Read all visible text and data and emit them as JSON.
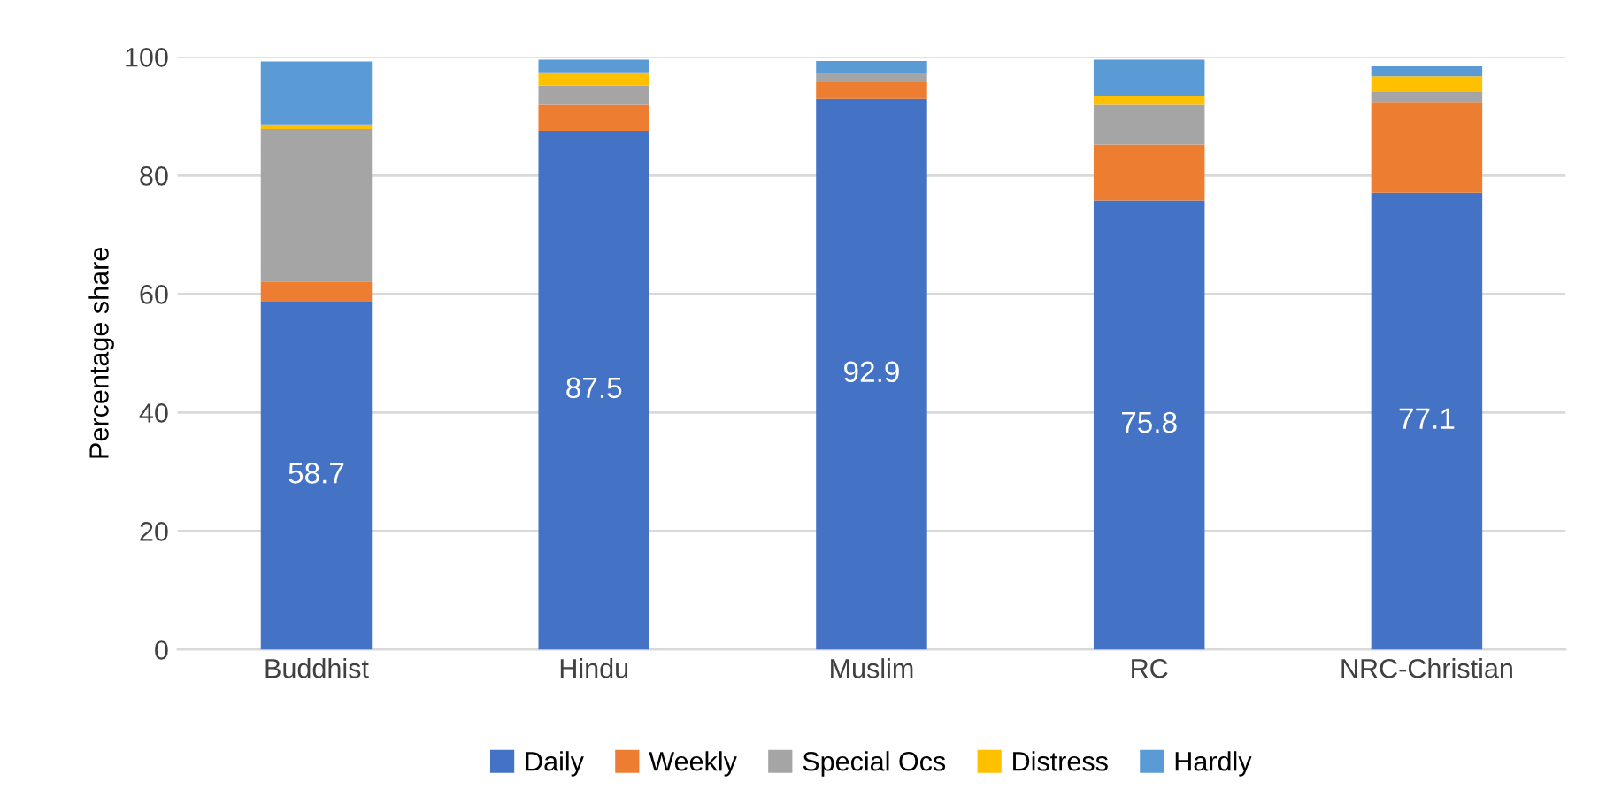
{
  "chart_data": {
    "type": "bar",
    "stacked": true,
    "ylabel": "Percentage share",
    "categories": [
      "Buddhist",
      "Hindu",
      "Muslim",
      "RC",
      "NRC-Christian"
    ],
    "series": [
      {
        "name": "Daily",
        "color": "#4472c4",
        "values": [
          58.7,
          87.5,
          92.9,
          75.8,
          77.1
        ],
        "value_labels": [
          "58.7",
          "87.5",
          "92.9",
          "75.8",
          "77.1"
        ]
      },
      {
        "name": "Weekly",
        "color": "#ed7d31",
        "values": [
          3.4,
          4.4,
          2.8,
          9.4,
          15.3
        ]
      },
      {
        "name": "Special Ocs",
        "color": "#a5a5a5",
        "values": [
          25.7,
          3.3,
          1.6,
          6.7,
          1.8
        ]
      },
      {
        "name": "Distress",
        "color": "#ffc000",
        "values": [
          0.8,
          2.2,
          0,
          1.5,
          2.5
        ]
      },
      {
        "name": "Hardly",
        "color": "#5b9bd5",
        "values": [
          10.6,
          2.1,
          2.0,
          6.1,
          1.7
        ]
      }
    ],
    "ylim": [
      0,
      100
    ],
    "yticks": [
      0,
      20,
      40,
      60,
      80,
      100
    ],
    "grid": "y",
    "legend": "bottom"
  }
}
